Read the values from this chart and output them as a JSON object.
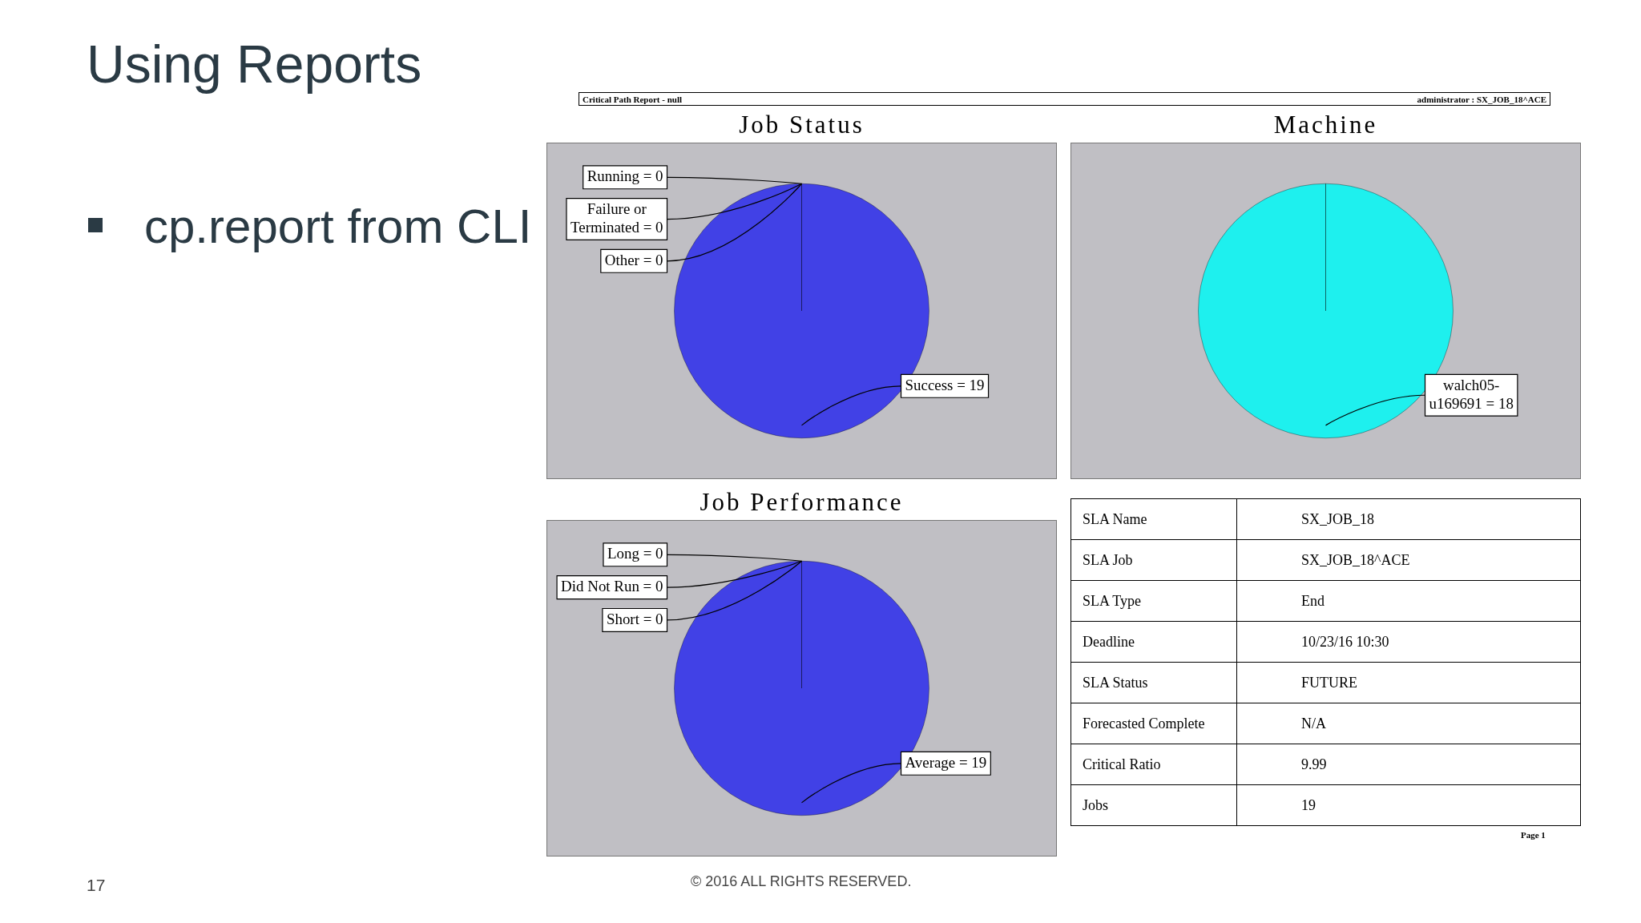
{
  "chart_data": [
    {
      "type": "other",
      "title": "Using Reports",
      "annotations": [
        "cp.report from CLI",
        "Critical Path Report - null",
        "administrator : SX_JOB_18^ACE",
        "Page 1",
        "17",
        "© 2016 ALL RIGHTS RESERVED."
      ]
    },
    {
      "type": "pie",
      "title": "Job Status",
      "categories": [
        "Running",
        "Failure or Terminated",
        "Other",
        "Success"
      ],
      "values": [
        0,
        0,
        0,
        19
      ],
      "value_labels": [
        "= 0",
        "= 0",
        "= 0",
        "= 19"
      ],
      "colors": [
        "#4141e6",
        "#4141e6",
        "#4141e6",
        "#4141e6"
      ]
    },
    {
      "type": "pie",
      "title": "Machine",
      "categories": [
        "walch05-u169691"
      ],
      "values": [
        18
      ],
      "value_labels": [
        "= 18"
      ],
      "colors": [
        "#1ef0ee"
      ]
    },
    {
      "type": "pie",
      "title": "Job Performance",
      "categories": [
        "Long",
        "Did Not Run",
        "Short",
        "Average"
      ],
      "values": [
        0,
        0,
        0,
        19
      ],
      "value_labels": [
        "= 0",
        "= 0",
        "= 0",
        "= 19"
      ],
      "colors": [
        "#4141e6",
        "#4141e6",
        "#4141e6",
        "#4141e6"
      ]
    },
    {
      "type": "other",
      "annotations": [
        "SLA Name",
        "SX_JOB_18",
        "SLA Job",
        "SX_JOB_18^ACE",
        "SLA Type",
        "End",
        "Deadline",
        "10/23/16 10:30",
        "SLA Status",
        "FUTURE",
        "Forecasted Complete",
        "N/A",
        "Critical Ratio",
        "9.99",
        "Jobs",
        "19"
      ]
    }
  ]
}
